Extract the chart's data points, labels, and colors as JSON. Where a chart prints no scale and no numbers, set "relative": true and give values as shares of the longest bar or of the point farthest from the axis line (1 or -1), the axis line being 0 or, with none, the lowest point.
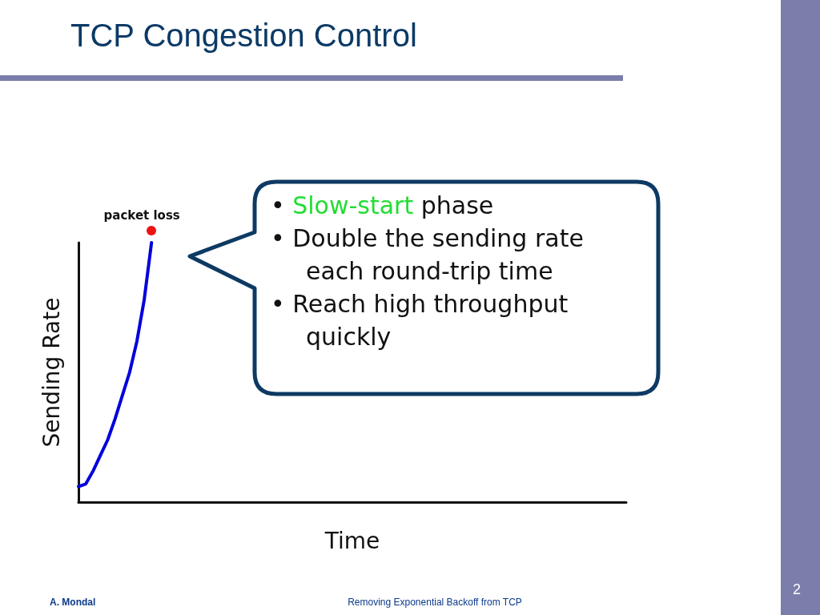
{
  "chart_data": {
    "type": "line",
    "title": "TCP Congestion Control",
    "xlabel": "Time",
    "ylabel": "Sending Rate",
    "relative": true,
    "grid": false,
    "categories": [
      null,
      null,
      null,
      null,
      null,
      null,
      null,
      null,
      null,
      null,
      null,
      null,
      null,
      null,
      null,
      null,
      null,
      null,
      null,
      null,
      null,
      null,
      null,
      null,
      null,
      null,
      null,
      null,
      null,
      null,
      null,
      null,
      null,
      null,
      null,
      null,
      null,
      null,
      null,
      null,
      null,
      null,
      null,
      null,
      null,
      null,
      null,
      null,
      null,
      null,
      null,
      null,
      null,
      null,
      null,
      null,
      null,
      null,
      null,
      null,
      null,
      null,
      null,
      null,
      null,
      null,
      null,
      null,
      null,
      null,
      null,
      null,
      null,
      null,
      null,
      null
    ],
    "series": [
      {
        "color": "#0000dd",
        "marker": "none",
        "values": [
          0.06,
          0.07,
          0.12,
          0.18,
          0.24,
          0.32,
          0.41,
          0.5,
          0.62,
          0.78,
          1,
          null,
          null,
          null,
          null,
          null,
          null,
          null,
          null,
          null,
          null,
          null,
          null,
          null,
          null,
          null,
          null,
          null,
          null,
          null,
          null,
          null,
          null,
          null,
          null,
          null,
          null,
          null,
          null,
          null,
          null,
          null,
          null,
          null,
          null,
          null,
          null,
          null,
          null,
          null,
          null,
          null,
          null,
          null,
          null,
          null,
          null,
          null,
          null,
          null,
          null,
          null,
          null,
          null,
          null,
          null,
          null,
          null,
          null,
          null,
          null,
          null,
          null,
          null,
          null,
          null
        ]
      }
    ],
    "annotations": [
      "packet loss",
      "•  Slow-start phase",
      "•  Double the sending rate each round-trip time",
      "•  Reach high throughput quickly",
      "A. Mondal",
      "Removing Exponential Backoff from TCP",
      "2"
    ]
  }
}
